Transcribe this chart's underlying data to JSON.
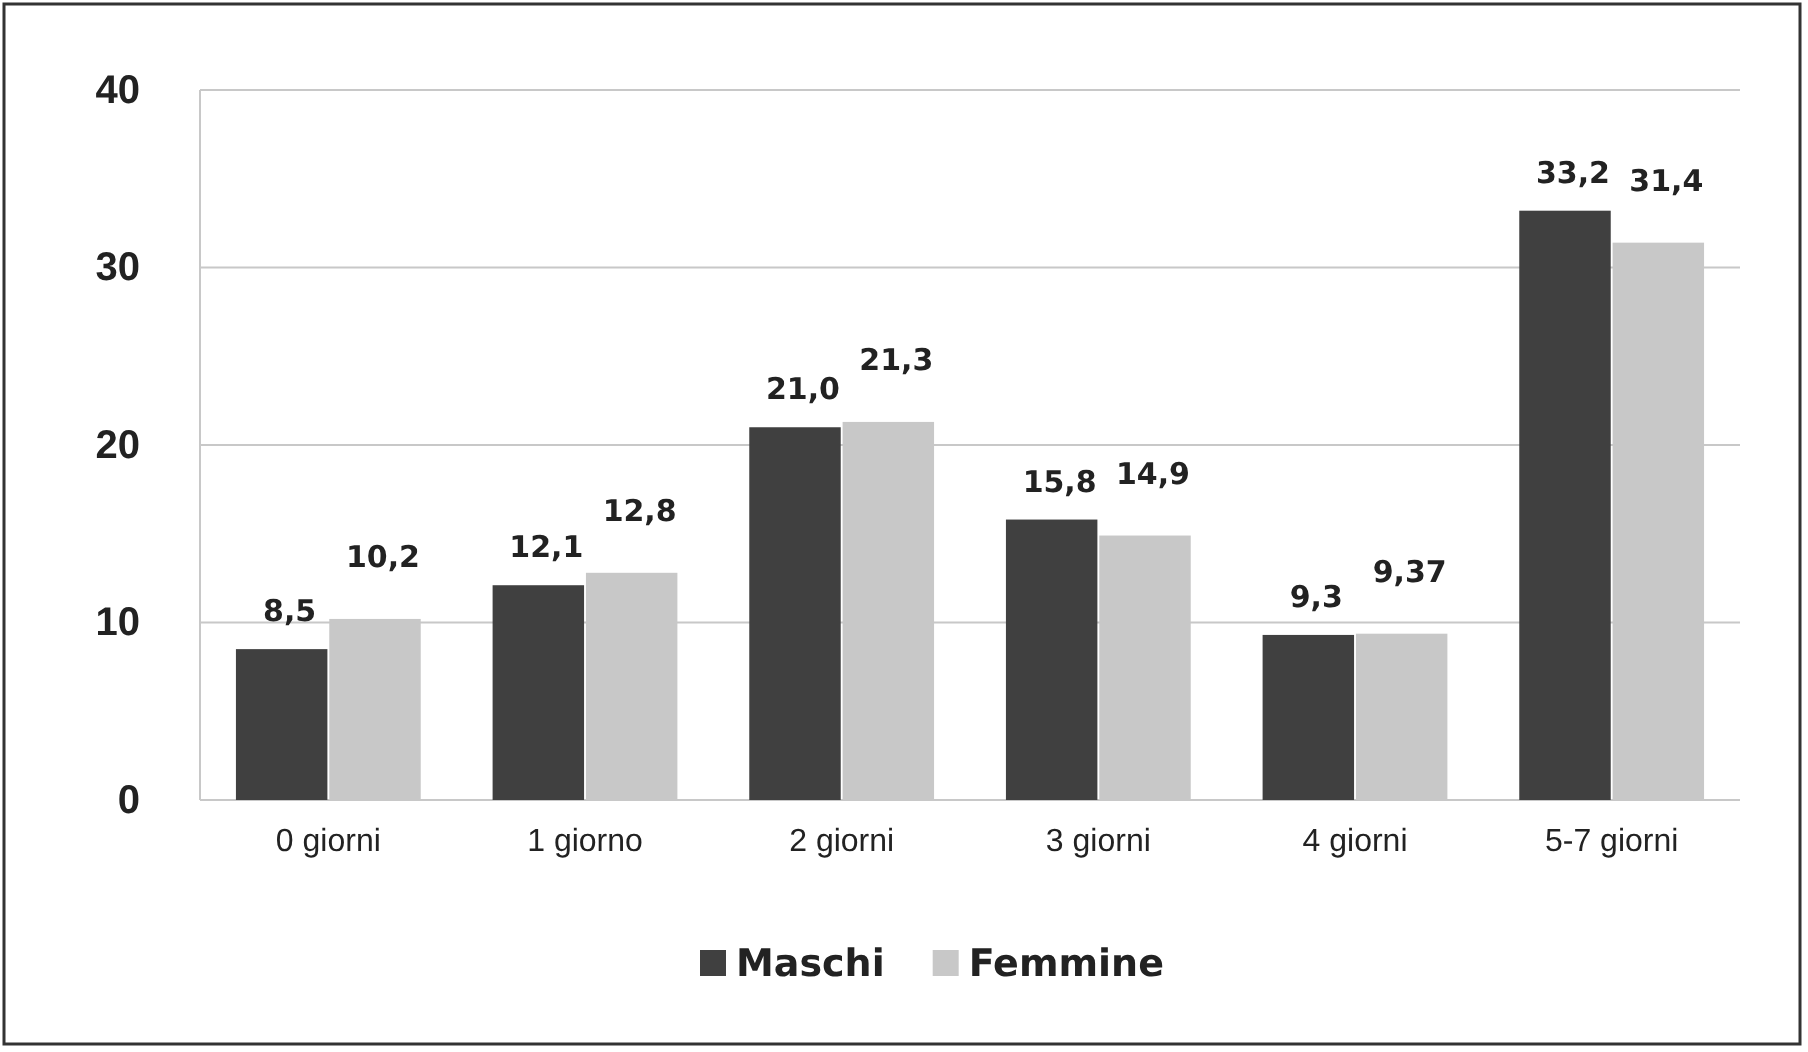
{
  "chart_data": {
    "type": "bar",
    "categories": [
      "0 giorni",
      "1 giorno",
      "2 giorni",
      "3 giorni",
      "4 giorni",
      "5-7 giorni"
    ],
    "series": [
      {
        "name": "Maschi",
        "color": "#404040",
        "values": [
          8.5,
          12.1,
          21.0,
          15.8,
          9.3,
          33.2
        ],
        "value_labels": [
          "8,5",
          "12,1",
          "21,0",
          "15,8",
          "9,3",
          "33,2"
        ]
      },
      {
        "name": "Femmine",
        "color": "#c8c8c8",
        "values": [
          10.2,
          12.8,
          21.3,
          14.9,
          9.37,
          31.4
        ],
        "value_labels": [
          "10,2",
          "12,8",
          "21,3",
          "14,9",
          "9,37",
          "31,4"
        ]
      }
    ],
    "ylim": [
      0,
      40
    ],
    "yticks": [
      0,
      10,
      20,
      30,
      40
    ],
    "grid": "y",
    "legend": "bottom"
  }
}
